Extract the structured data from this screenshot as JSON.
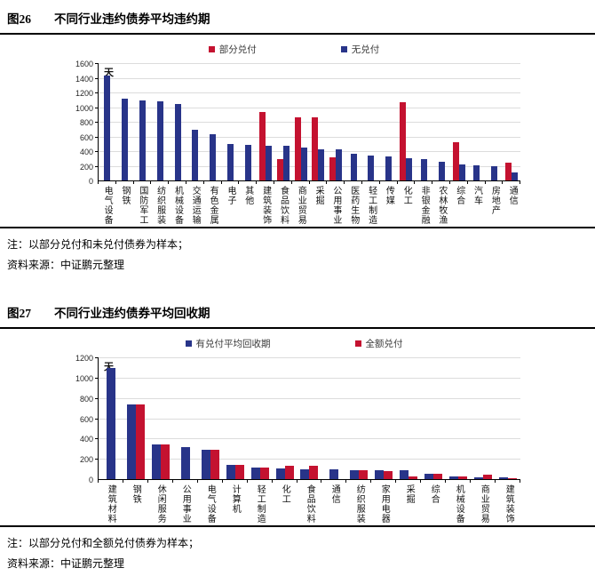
{
  "figures": [
    {
      "tag": "图26",
      "title": "不同行业违约债券平均违约期",
      "note": "注：以部分兑付和未兑付债券为样本；",
      "source": "资料来源：中证鹏元整理"
    },
    {
      "tag": "图27",
      "title": "不同行业违约债券平均回收期",
      "note": "注：以部分兑付和全额兑付债券为样本；",
      "source": "资料来源：中证鹏元整理"
    }
  ],
  "colors": {
    "red_series": "#c41230",
    "blue_series": "#283489",
    "gridline": "#dcdcdc"
  },
  "chart_data": [
    {
      "type": "bar",
      "title": "不同行业违约债券平均违约期",
      "unit_label": "天",
      "ylabel": "天",
      "ylim": [
        0,
        1600
      ],
      "ytick_step": 200,
      "grid": true,
      "legend_position": "top",
      "categories": [
        "电气设备",
        "钢铁",
        "国防军工",
        "纺织服装",
        "机械设备",
        "交通运输",
        "有色金属",
        "电子",
        "其他",
        "建筑装饰",
        "食品饮料",
        "商业贸易",
        "采掘",
        "公用事业",
        "医药生物",
        "轻工制造",
        "传媒",
        "化工",
        "非银金融",
        "农林牧渔",
        "综合",
        "汽车",
        "房地产",
        "通信"
      ],
      "series": [
        {
          "name": "部分兑付",
          "color": "#c41230",
          "values": [
            null,
            null,
            null,
            null,
            null,
            null,
            null,
            null,
            null,
            935,
            290,
            855,
            860,
            310,
            null,
            null,
            null,
            1065,
            null,
            null,
            525,
            null,
            null,
            240
          ]
        },
        {
          "name": "无兑付",
          "color": "#283489",
          "values": [
            1430,
            1120,
            1090,
            1075,
            1045,
            690,
            630,
            500,
            490,
            470,
            475,
            445,
            430,
            425,
            365,
            345,
            325,
            300,
            290,
            260,
            215,
            205,
            190,
            105
          ]
        }
      ]
    },
    {
      "type": "bar",
      "title": "不同行业违约债券平均回收期",
      "unit_label": "天",
      "ylabel": "天",
      "ylim": [
        0,
        1200
      ],
      "ytick_step": 200,
      "grid": true,
      "legend_position": "top",
      "categories": [
        "建筑材料",
        "钢铁",
        "休闲服务",
        "公用事业",
        "电气设备",
        "计算机",
        "轻工制造",
        "化工",
        "食品饮料",
        "通信",
        "纺织服装",
        "家用电器",
        "采掘",
        "综合",
        "机械设备",
        "商业贸易",
        "建筑装饰"
      ],
      "series": [
        {
          "name": "有兑付平均回收期",
          "color": "#283489",
          "values": [
            1095,
            740,
            340,
            315,
            290,
            140,
            115,
            105,
            95,
            100,
            90,
            85,
            85,
            50,
            25,
            15,
            15
          ]
        },
        {
          "name": "全额兑付",
          "color": "#c41230",
          "values": [
            null,
            740,
            340,
            null,
            290,
            140,
            110,
            135,
            130,
            null,
            90,
            80,
            25,
            55,
            30,
            45,
            10
          ]
        }
      ]
    }
  ]
}
